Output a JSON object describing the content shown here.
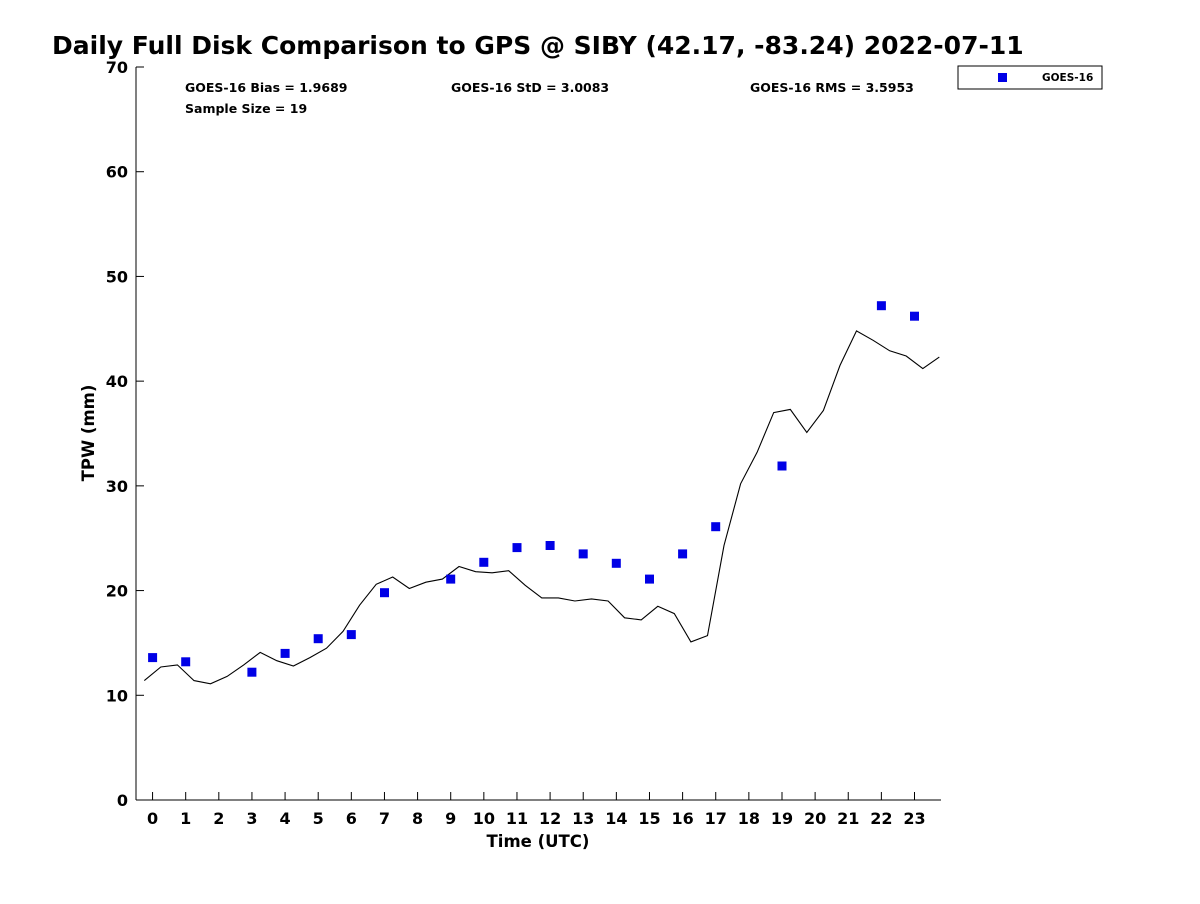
{
  "chart_data": {
    "type": "scatter",
    "title": "Daily Full Disk Comparison to GPS @ SIBY (42.17, -83.24) 2022-07-11",
    "xlabel": "Time (UTC)",
    "ylabel": "TPW (mm)",
    "xlim": [
      -0.5,
      23.8
    ],
    "ylim": [
      0,
      70
    ],
    "x_ticks": [
      0,
      1,
      2,
      3,
      4,
      5,
      6,
      7,
      8,
      9,
      10,
      11,
      12,
      13,
      14,
      15,
      16,
      17,
      18,
      19,
      20,
      21,
      22,
      23
    ],
    "y_ticks": [
      0,
      10,
      20,
      30,
      40,
      50,
      60,
      70
    ],
    "grid": false,
    "legend_position": "top-right",
    "stats": {
      "bias": "GOES-16 Bias = 1.9689",
      "std": "GOES-16 StD = 3.0083",
      "rms": "GOES-16 RMS = 3.5953",
      "sample_size": "Sample Size = 19"
    },
    "series": [
      {
        "name": "GOES-16",
        "kind": "scatter",
        "marker": "square",
        "color": "#0000e6",
        "x": [
          0,
          1,
          3,
          4,
          5,
          6,
          7,
          9,
          10,
          11,
          12,
          13,
          14,
          15,
          16,
          17,
          19,
          22,
          23
        ],
        "y": [
          13.6,
          13.2,
          12.2,
          14.0,
          15.4,
          15.8,
          19.8,
          21.1,
          22.7,
          24.1,
          24.3,
          23.5,
          22.6,
          21.1,
          23.5,
          26.1,
          31.9,
          47.2,
          46.2
        ]
      },
      {
        "kind": "line",
        "color": "#000000",
        "x": [
          -0.25,
          0.25,
          0.75,
          1.25,
          1.75,
          2.25,
          2.75,
          3.25,
          3.75,
          4.25,
          4.75,
          5.25,
          5.75,
          6.25,
          6.75,
          7.25,
          7.75,
          8.25,
          8.75,
          9.25,
          9.75,
          10.25,
          10.75,
          11.25,
          11.75,
          12.25,
          12.75,
          13.25,
          13.75,
          14.25,
          14.75,
          15.25,
          15.75,
          16.25,
          16.75,
          17.25,
          17.75,
          18.25,
          18.75,
          19.25,
          19.75,
          20.25,
          20.75,
          21.25,
          21.75,
          22.25,
          22.75,
          23.25,
          23.75
        ],
        "y": [
          11.4,
          12.7,
          12.9,
          11.4,
          11.1,
          11.8,
          12.9,
          14.1,
          13.3,
          12.8,
          13.6,
          14.5,
          16.1,
          18.6,
          20.6,
          21.3,
          20.2,
          20.8,
          21.1,
          22.3,
          21.8,
          21.7,
          21.9,
          20.5,
          19.3,
          19.3,
          19.0,
          19.2,
          19.0,
          17.4,
          17.2,
          18.5,
          17.8,
          15.1,
          15.7,
          24.3,
          30.2,
          33.2,
          37.0,
          37.3,
          35.1,
          37.2,
          41.5,
          44.8,
          43.9,
          42.9,
          42.4,
          41.2,
          42.3
        ]
      }
    ]
  }
}
